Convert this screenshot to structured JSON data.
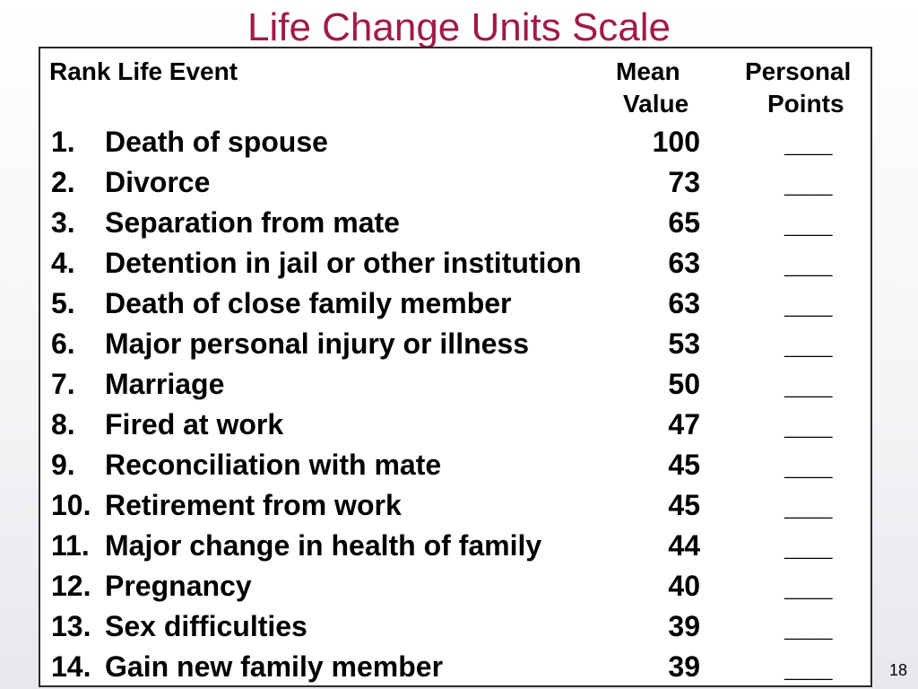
{
  "slide": {
    "title": "Life Change Units Scale",
    "page_number": "18"
  },
  "table": {
    "headers": {
      "rank_event": "Rank  Life Event",
      "mean_line1": "Mean",
      "mean_line2": "Value",
      "personal_line1": "Personal",
      "personal_line2": "Points"
    },
    "rows": [
      {
        "rank": "1.",
        "event": "Death of spouse",
        "value": "100",
        "points": "___"
      },
      {
        "rank": "2.",
        "event": "Divorce",
        "value": "73",
        "points": "___"
      },
      {
        "rank": "3.",
        "event": "Separation from mate",
        "value": "65",
        "points": "___"
      },
      {
        "rank": "4.",
        "event": "Detention in jail or other institution",
        "value": "63",
        "points": "___"
      },
      {
        "rank": "5.",
        "event": "Death of close family member",
        "value": "63",
        "points": "___"
      },
      {
        "rank": "6.",
        "event": "Major personal injury or illness",
        "value": "53",
        "points": "___"
      },
      {
        "rank": "7.",
        "event": "Marriage",
        "value": "50",
        "points": "___"
      },
      {
        "rank": "8.",
        "event": "Fired at work",
        "value": "47",
        "points": "___"
      },
      {
        "rank": "9.",
        "event": "Reconciliation with mate",
        "value": "45",
        "points": "___"
      },
      {
        "rank": "10.",
        "event": "Retirement from work",
        "value": "45",
        "points": "___"
      },
      {
        "rank": "11.",
        "event": "Major change in health of family",
        "value": "44",
        "points": "___"
      },
      {
        "rank": "12.",
        "event": "Pregnancy",
        "value": "40",
        "points": "___"
      },
      {
        "rank": "13.",
        "event": "Sex difficulties",
        "value": "39",
        "points": "___"
      },
      {
        "rank": "14.",
        "event": "Gain new family member",
        "value": "39",
        "points": "___"
      }
    ]
  },
  "colors": {
    "title": "#a21a45",
    "text": "#000000",
    "border": "#2a2a2a"
  }
}
